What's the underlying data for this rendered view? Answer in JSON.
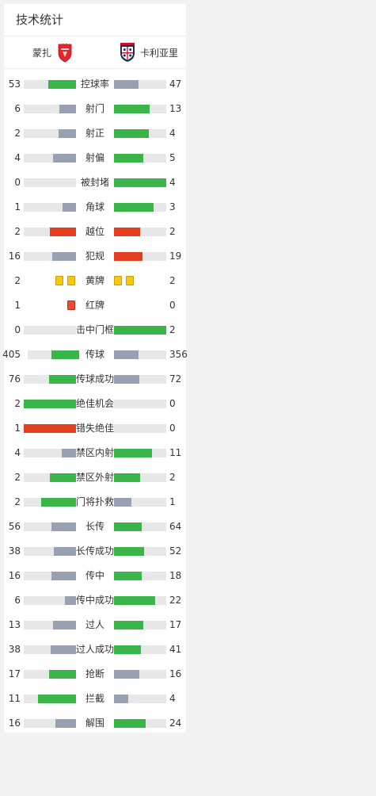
{
  "header": {
    "title": "技术统计"
  },
  "teams": {
    "home": "蒙扎",
    "away": "卡利亚里"
  },
  "colors": {
    "green": "#39b54a",
    "gray": "#97a1b1",
    "red": "#e23e1f",
    "track": "#e7e7e7",
    "yellow": "#f5c518"
  },
  "stats": [
    {
      "label": "控球率",
      "home": "53",
      "away": "47",
      "hv": 53,
      "av": 47,
      "hc": "green",
      "ac": "gray"
    },
    {
      "label": "射门",
      "home": "6",
      "away": "13",
      "hv": 6,
      "av": 13,
      "hc": "gray",
      "ac": "green"
    },
    {
      "label": "射正",
      "home": "2",
      "away": "4",
      "hv": 2,
      "av": 4,
      "hc": "gray",
      "ac": "green"
    },
    {
      "label": "射偏",
      "home": "4",
      "away": "5",
      "hv": 4,
      "av": 5,
      "hc": "gray",
      "ac": "green"
    },
    {
      "label": "被封堵",
      "home": "0",
      "away": "4",
      "hv": 0,
      "av": 4,
      "hc": "gray",
      "ac": "green"
    },
    {
      "label": "角球",
      "home": "1",
      "away": "3",
      "hv": 1,
      "av": 3,
      "hc": "gray",
      "ac": "green"
    },
    {
      "label": "越位",
      "home": "2",
      "away": "2",
      "hv": 2,
      "av": 2,
      "hc": "red",
      "ac": "red"
    },
    {
      "label": "犯规",
      "home": "16",
      "away": "19",
      "hv": 16,
      "av": 19,
      "hc": "gray",
      "ac": "red"
    },
    {
      "label": "黄牌",
      "home": "2",
      "away": "2",
      "hv": 2,
      "av": 2,
      "type": "yellow"
    },
    {
      "label": "红牌",
      "home": "1",
      "away": "0",
      "hv": 1,
      "av": 0,
      "type": "red"
    },
    {
      "label": "击中门框",
      "home": "0",
      "away": "2",
      "hv": 0,
      "av": 2,
      "hc": "gray",
      "ac": "green"
    },
    {
      "label": "传球",
      "home": "405",
      "away": "356",
      "hv": 405,
      "av": 356,
      "hc": "green",
      "ac": "gray",
      "narrow": true
    },
    {
      "label": "传球成功",
      "home": "76",
      "away": "72",
      "hv": 76,
      "av": 72,
      "hc": "green",
      "ac": "gray"
    },
    {
      "label": "绝佳机会",
      "home": "2",
      "away": "0",
      "hv": 2,
      "av": 0,
      "hc": "green",
      "ac": "gray"
    },
    {
      "label": "错失绝佳",
      "home": "1",
      "away": "0",
      "hv": 1,
      "av": 0,
      "hc": "red",
      "ac": "gray"
    },
    {
      "label": "禁区内射",
      "home": "4",
      "away": "11",
      "hv": 4,
      "av": 11,
      "hc": "gray",
      "ac": "green"
    },
    {
      "label": "禁区外射",
      "home": "2",
      "away": "2",
      "hv": 2,
      "av": 2,
      "hc": "green",
      "ac": "green"
    },
    {
      "label": "门将扑救",
      "home": "2",
      "away": "1",
      "hv": 2,
      "av": 1,
      "hc": "green",
      "ac": "gray"
    },
    {
      "label": "长传",
      "home": "56",
      "away": "64",
      "hv": 56,
      "av": 64,
      "hc": "gray",
      "ac": "green"
    },
    {
      "label": "长传成功",
      "home": "38",
      "away": "52",
      "hv": 38,
      "av": 52,
      "hc": "gray",
      "ac": "green"
    },
    {
      "label": "传中",
      "home": "16",
      "away": "18",
      "hv": 16,
      "av": 18,
      "hc": "gray",
      "ac": "green"
    },
    {
      "label": "传中成功",
      "home": "6",
      "away": "22",
      "hv": 6,
      "av": 22,
      "hc": "gray",
      "ac": "green"
    },
    {
      "label": "过人",
      "home": "13",
      "away": "17",
      "hv": 13,
      "av": 17,
      "hc": "gray",
      "ac": "green"
    },
    {
      "label": "过人成功",
      "home": "38",
      "away": "41",
      "hv": 38,
      "av": 41,
      "hc": "gray",
      "ac": "green"
    },
    {
      "label": "抢断",
      "home": "17",
      "away": "16",
      "hv": 17,
      "av": 16,
      "hc": "green",
      "ac": "gray"
    },
    {
      "label": "拦截",
      "home": "11",
      "away": "4",
      "hv": 11,
      "av": 4,
      "hc": "green",
      "ac": "gray"
    },
    {
      "label": "解围",
      "home": "16",
      "away": "24",
      "hv": 16,
      "av": 24,
      "hc": "gray",
      "ac": "green"
    }
  ]
}
